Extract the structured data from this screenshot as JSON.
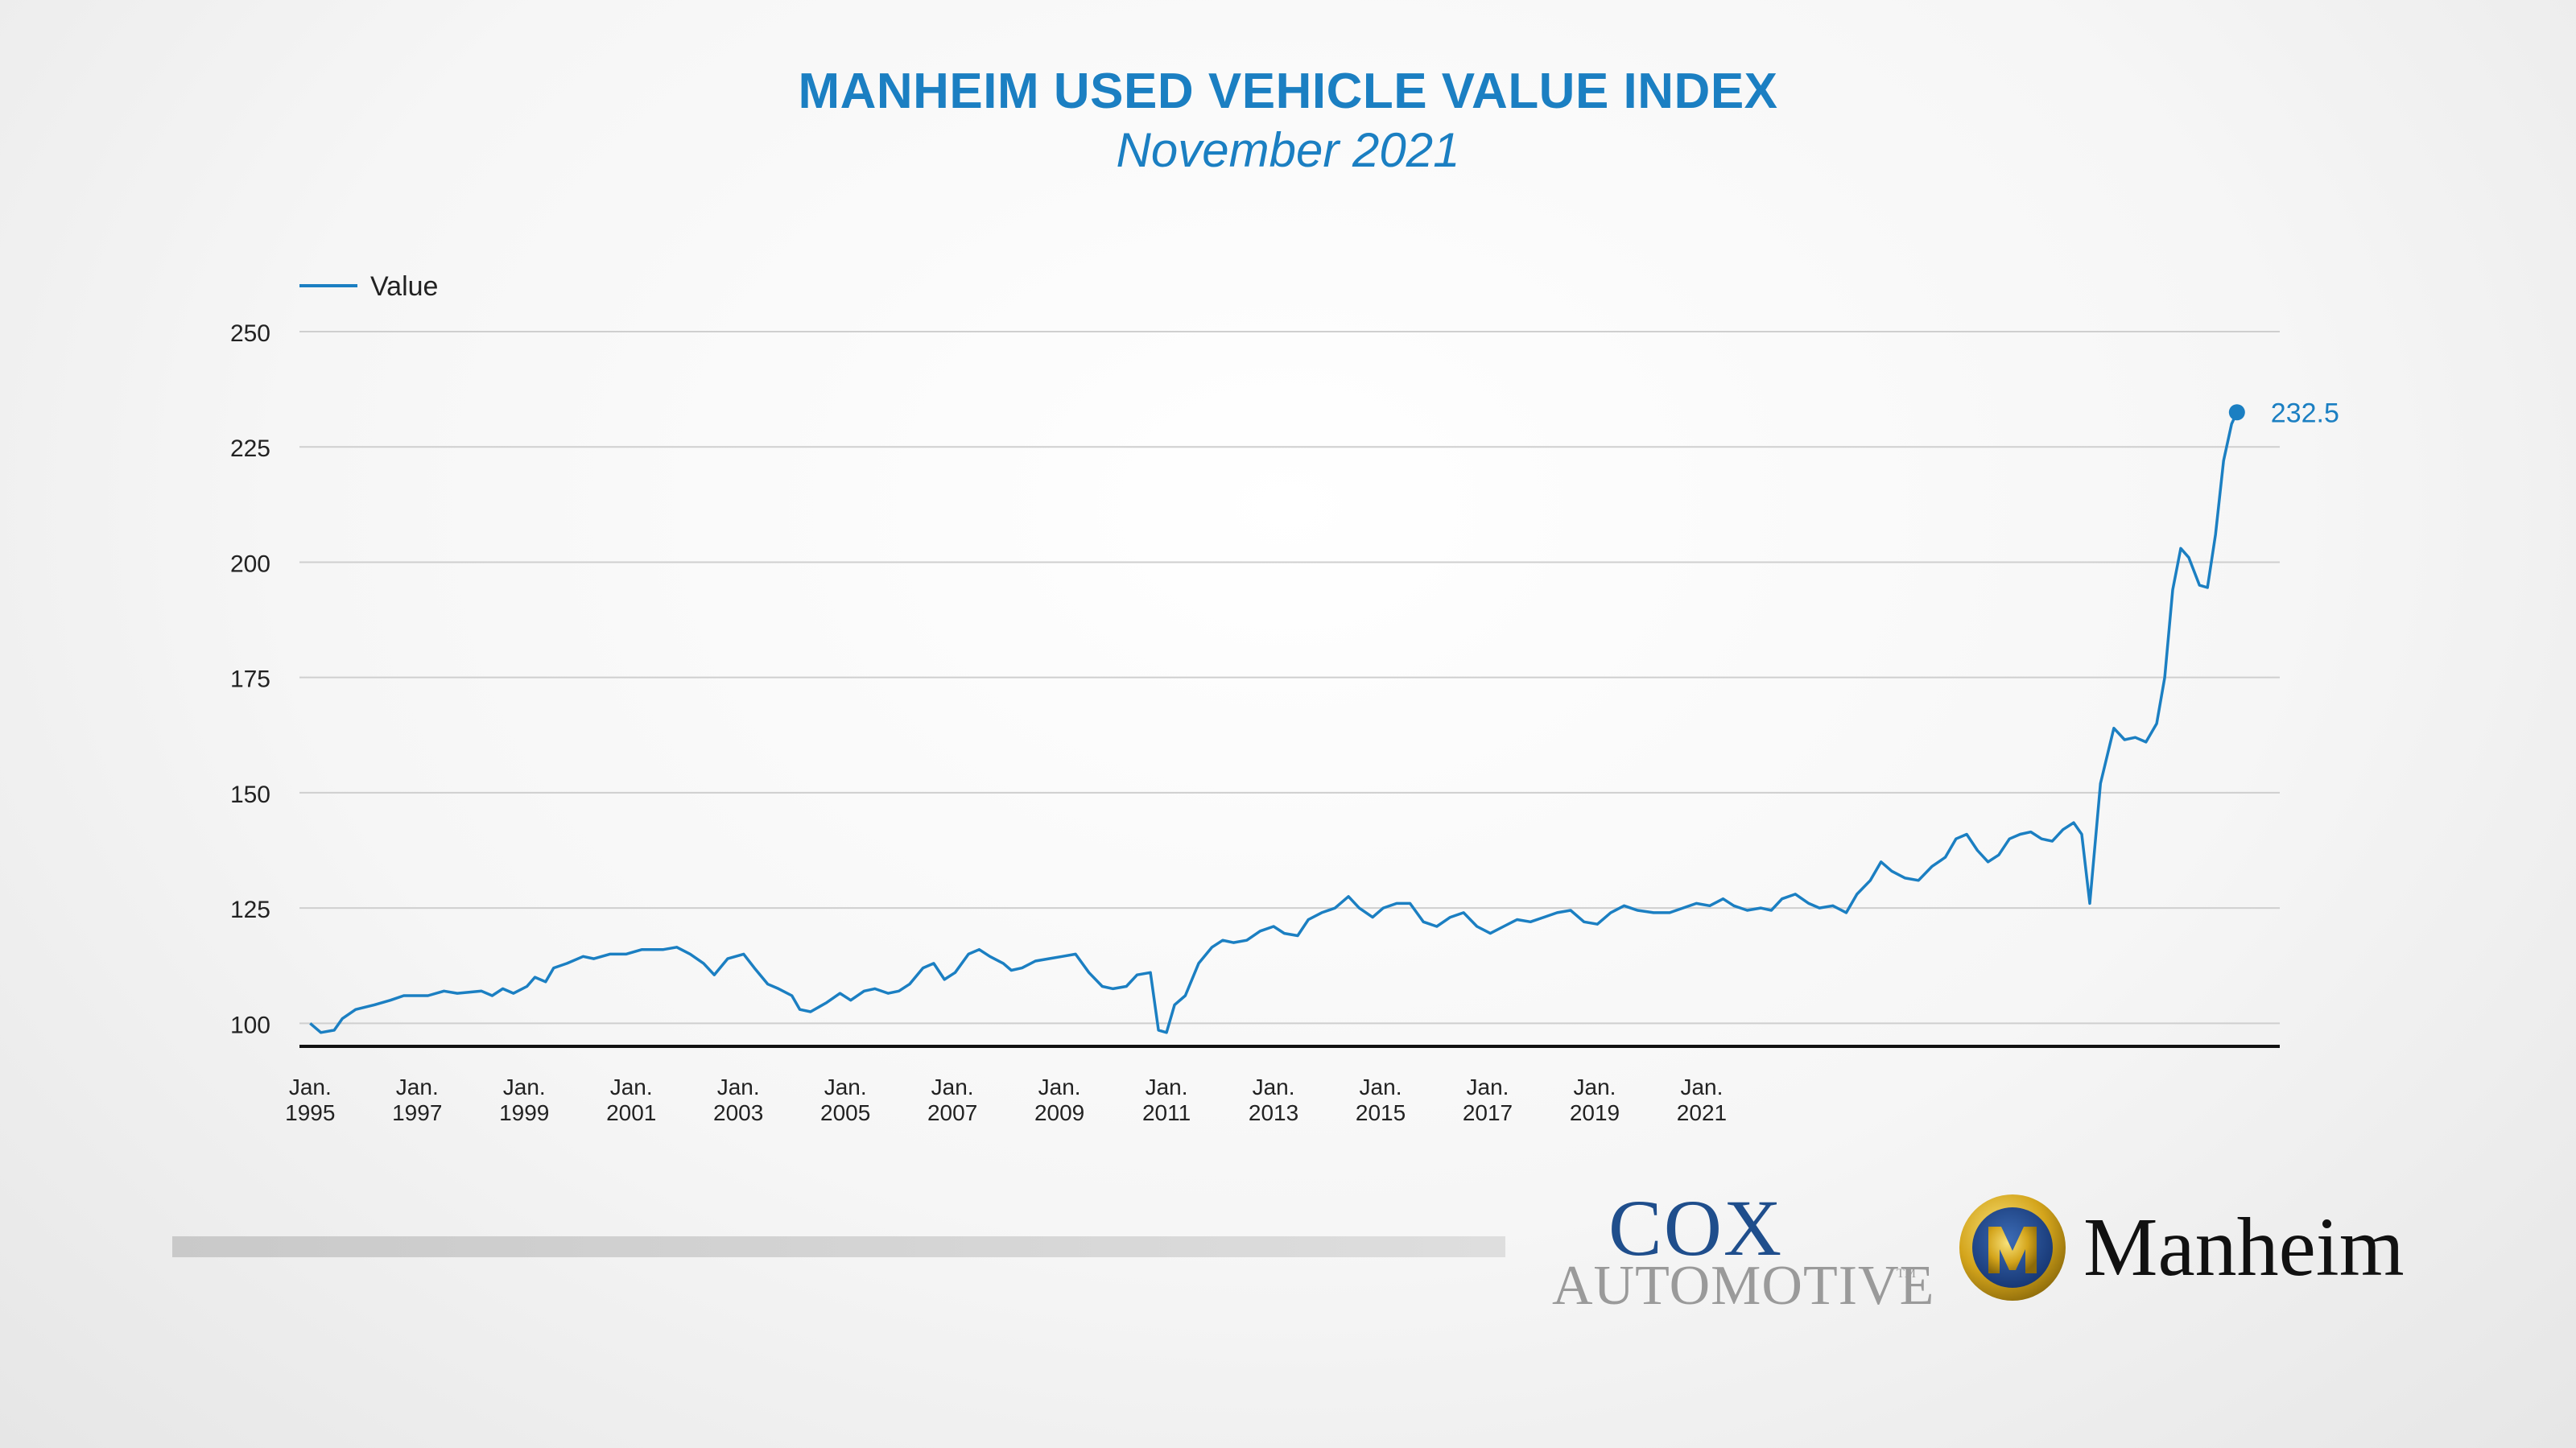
{
  "title": "MANHEIM USED VEHICLE VALUE INDEX",
  "subtitle": "November 2021",
  "colors": {
    "accent": "#1b7fc2",
    "grid": "#cfcfcf",
    "axis": "#111111"
  },
  "logos": {
    "cox_word": "Cox",
    "automotive_word": "Automotive",
    "tm": "TM",
    "manheim_word": "Manheim"
  },
  "chart_data": {
    "type": "line",
    "title": "MANHEIM USED VEHICLE VALUE INDEX",
    "subtitle": "November 2021",
    "xlabel": "",
    "ylabel": "",
    "ylim": [
      95,
      250
    ],
    "yticks": [
      100,
      125,
      150,
      175,
      200,
      225,
      250
    ],
    "grid": true,
    "legend": "top-left",
    "x_tick_labels": [
      {
        "line1": "Jan.",
        "line2": "1995",
        "x": 1995.0
      },
      {
        "line1": "Jan.",
        "line2": "1997",
        "x": 1997.0
      },
      {
        "line1": "Jan.",
        "line2": "1999",
        "x": 1999.0
      },
      {
        "line1": "Jan.",
        "line2": "2001",
        "x": 2001.0
      },
      {
        "line1": "Jan.",
        "line2": "2003",
        "x": 2003.0
      },
      {
        "line1": "Jan.",
        "line2": "2005",
        "x": 2005.0
      },
      {
        "line1": "Jan.",
        "line2": "2007",
        "x": 2007.0
      },
      {
        "line1": "Jan.",
        "line2": "2009",
        "x": 2009.0
      },
      {
        "line1": "Jan.",
        "line2": "2011",
        "x": 2011.0
      },
      {
        "line1": "Jan.",
        "line2": "2013",
        "x": 2013.0
      },
      {
        "line1": "Jan.",
        "line2": "2015",
        "x": 2015.0
      },
      {
        "line1": "Jan.",
        "line2": "2017",
        "x": 2017.0
      },
      {
        "line1": "Jan.",
        "line2": "2019",
        "x": 2019.0
      },
      {
        "line1": "Jan.",
        "line2": "2021",
        "x": 2021.0
      }
    ],
    "end_label": "232.5",
    "series": [
      {
        "name": "Value",
        "color": "#1b7fc2",
        "points": [
          [
            1995.0,
            100
          ],
          [
            1995.2,
            98
          ],
          [
            1995.45,
            98.5
          ],
          [
            1995.6,
            101
          ],
          [
            1995.85,
            103
          ],
          [
            1996.2,
            104
          ],
          [
            1996.5,
            105
          ],
          [
            1996.75,
            106
          ],
          [
            1997.2,
            106
          ],
          [
            1997.5,
            107
          ],
          [
            1997.75,
            106.5
          ],
          [
            1998.2,
            107
          ],
          [
            1998.4,
            106
          ],
          [
            1998.6,
            107.5
          ],
          [
            1998.8,
            106.5
          ],
          [
            1999.05,
            108
          ],
          [
            1999.2,
            110
          ],
          [
            1999.4,
            109
          ],
          [
            1999.55,
            112
          ],
          [
            1999.8,
            113
          ],
          [
            2000.1,
            114.5
          ],
          [
            2000.3,
            114
          ],
          [
            2000.6,
            115
          ],
          [
            2000.9,
            115
          ],
          [
            2001.2,
            116
          ],
          [
            2001.6,
            116
          ],
          [
            2001.85,
            116.5
          ],
          [
            2002.1,
            115
          ],
          [
            2002.35,
            113
          ],
          [
            2002.55,
            110.5
          ],
          [
            2002.8,
            114
          ],
          [
            2003.1,
            115
          ],
          [
            2003.3,
            112
          ],
          [
            2003.55,
            108.5
          ],
          [
            2003.75,
            107.5
          ],
          [
            2004.0,
            106
          ],
          [
            2004.15,
            103
          ],
          [
            2004.35,
            102.5
          ],
          [
            2004.65,
            104.5
          ],
          [
            2004.9,
            106.5
          ],
          [
            2005.1,
            105
          ],
          [
            2005.35,
            107
          ],
          [
            2005.55,
            107.5
          ],
          [
            2005.8,
            106.5
          ],
          [
            2006.0,
            107
          ],
          [
            2006.2,
            108.5
          ],
          [
            2006.45,
            112
          ],
          [
            2006.65,
            113
          ],
          [
            2006.85,
            109.5
          ],
          [
            2007.05,
            111
          ],
          [
            2007.3,
            115
          ],
          [
            2007.5,
            116
          ],
          [
            2007.7,
            114.5
          ],
          [
            2007.95,
            113
          ],
          [
            2008.1,
            111.5
          ],
          [
            2008.3,
            112
          ],
          [
            2008.55,
            113.5
          ],
          [
            2008.8,
            114
          ],
          [
            2009.05,
            114.5
          ],
          [
            2009.3,
            115
          ],
          [
            2009.55,
            111
          ],
          [
            2009.8,
            108
          ],
          [
            2010.0,
            107.5
          ],
          [
            2010.25,
            108
          ],
          [
            2010.45,
            110.5
          ],
          [
            2010.7,
            111
          ],
          [
            2010.85,
            98.5
          ],
          [
            2011.0,
            98
          ],
          [
            2011.15,
            104
          ],
          [
            2011.35,
            106
          ],
          [
            2011.6,
            113
          ],
          [
            2011.85,
            116.5
          ],
          [
            2012.05,
            118
          ],
          [
            2012.25,
            117.5
          ],
          [
            2012.5,
            118
          ],
          [
            2012.75,
            120
          ],
          [
            2013.0,
            121
          ],
          [
            2013.2,
            119.5
          ],
          [
            2013.45,
            119
          ],
          [
            2013.65,
            122.5
          ],
          [
            2013.9,
            124
          ],
          [
            2014.15,
            125
          ],
          [
            2014.4,
            127.5
          ],
          [
            2014.6,
            125
          ],
          [
            2014.85,
            123
          ],
          [
            2015.05,
            125
          ],
          [
            2015.3,
            126
          ],
          [
            2015.55,
            126
          ],
          [
            2015.8,
            122
          ],
          [
            2016.05,
            121
          ],
          [
            2016.3,
            123
          ],
          [
            2016.55,
            124
          ],
          [
            2016.8,
            121
          ],
          [
            2017.05,
            119.5
          ],
          [
            2017.3,
            121
          ],
          [
            2017.55,
            122.5
          ],
          [
            2017.8,
            122
          ],
          [
            2018.05,
            123
          ],
          [
            2018.3,
            124
          ],
          [
            2018.55,
            124.5
          ],
          [
            2018.8,
            122
          ],
          [
            2019.05,
            121.5
          ],
          [
            2019.3,
            124
          ],
          [
            2019.55,
            125.5
          ],
          [
            2019.8,
            124.5
          ],
          [
            2020.1,
            124
          ],
          [
            2020.4,
            124
          ],
          [
            2020.65,
            125
          ],
          [
            2020.9,
            126
          ],
          [
            2021.15,
            125.5
          ],
          [
            2021.4,
            127
          ],
          [
            2021.6,
            125.5
          ],
          [
            2021.85,
            124.5
          ],
          [
            2022.1,
            125
          ],
          [
            2022.3,
            124.5
          ],
          [
            2022.5,
            127
          ],
          [
            2022.75,
            128
          ],
          [
            2023.0,
            126
          ],
          [
            2023.2,
            125
          ],
          [
            2023.45,
            125.5
          ],
          [
            2023.7,
            124
          ],
          [
            2023.9,
            128
          ],
          [
            2024.15,
            131
          ],
          [
            2024.35,
            135
          ],
          [
            2024.55,
            133
          ],
          [
            2024.8,
            131.5
          ],
          [
            2025.05,
            131
          ],
          [
            2025.3,
            134
          ],
          [
            2025.55,
            136
          ],
          [
            2025.75,
            140
          ],
          [
            2025.95,
            141
          ],
          [
            2026.15,
            137.5
          ],
          [
            2026.35,
            135
          ],
          [
            2026.55,
            136.5
          ],
          [
            2026.75,
            140
          ],
          [
            2026.95,
            141
          ],
          [
            2027.15,
            141.5
          ],
          [
            2027.35,
            140
          ],
          [
            2027.55,
            139.5
          ],
          [
            2027.75,
            142
          ],
          [
            2027.95,
            143.5
          ],
          [
            2028.1,
            141
          ],
          [
            2028.25,
            126
          ],
          [
            2028.45,
            152
          ],
          [
            2028.7,
            164
          ],
          [
            2028.9,
            161.5
          ],
          [
            2029.1,
            162
          ],
          [
            2029.3,
            161
          ],
          [
            2029.5,
            165
          ],
          [
            2029.65,
            175
          ],
          [
            2029.8,
            194
          ],
          [
            2029.95,
            203
          ],
          [
            2030.1,
            201
          ],
          [
            2030.3,
            195
          ],
          [
            2030.45,
            194.5
          ],
          [
            2030.6,
            206
          ],
          [
            2030.75,
            222
          ],
          [
            2030.9,
            230
          ],
          [
            2031.0,
            232.5
          ]
        ]
      }
    ]
  }
}
